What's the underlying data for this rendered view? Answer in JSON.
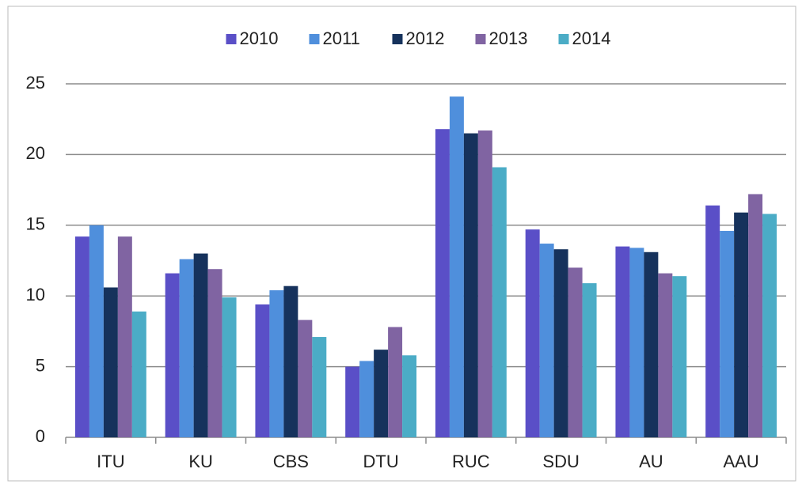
{
  "chart_data": {
    "type": "bar",
    "categories": [
      "ITU",
      "KU",
      "CBS",
      "DTU",
      "RUC",
      "SDU",
      "AU",
      "AAU"
    ],
    "series": [
      {
        "name": "2010",
        "color": "#5a4fc7",
        "values": [
          14.2,
          11.6,
          9.4,
          5.0,
          21.8,
          14.7,
          13.5,
          16.4
        ]
      },
      {
        "name": "2011",
        "color": "#4f8fdc",
        "values": [
          15.0,
          12.6,
          10.4,
          5.4,
          24.1,
          13.7,
          13.4,
          14.6
        ]
      },
      {
        "name": "2012",
        "color": "#16325c",
        "values": [
          10.6,
          13.0,
          10.7,
          6.2,
          21.5,
          13.3,
          13.1,
          15.9
        ]
      },
      {
        "name": "2013",
        "color": "#8064a2",
        "values": [
          14.2,
          11.9,
          8.3,
          7.8,
          21.7,
          12.0,
          11.6,
          17.2
        ]
      },
      {
        "name": "2014",
        "color": "#4bacc6",
        "values": [
          8.9,
          9.9,
          7.1,
          5.8,
          19.1,
          10.9,
          11.4,
          15.8
        ]
      }
    ],
    "ylim": [
      0,
      25
    ],
    "yticks": [
      0,
      5,
      10,
      15,
      20,
      25
    ],
    "grid": true,
    "legend": "top"
  }
}
